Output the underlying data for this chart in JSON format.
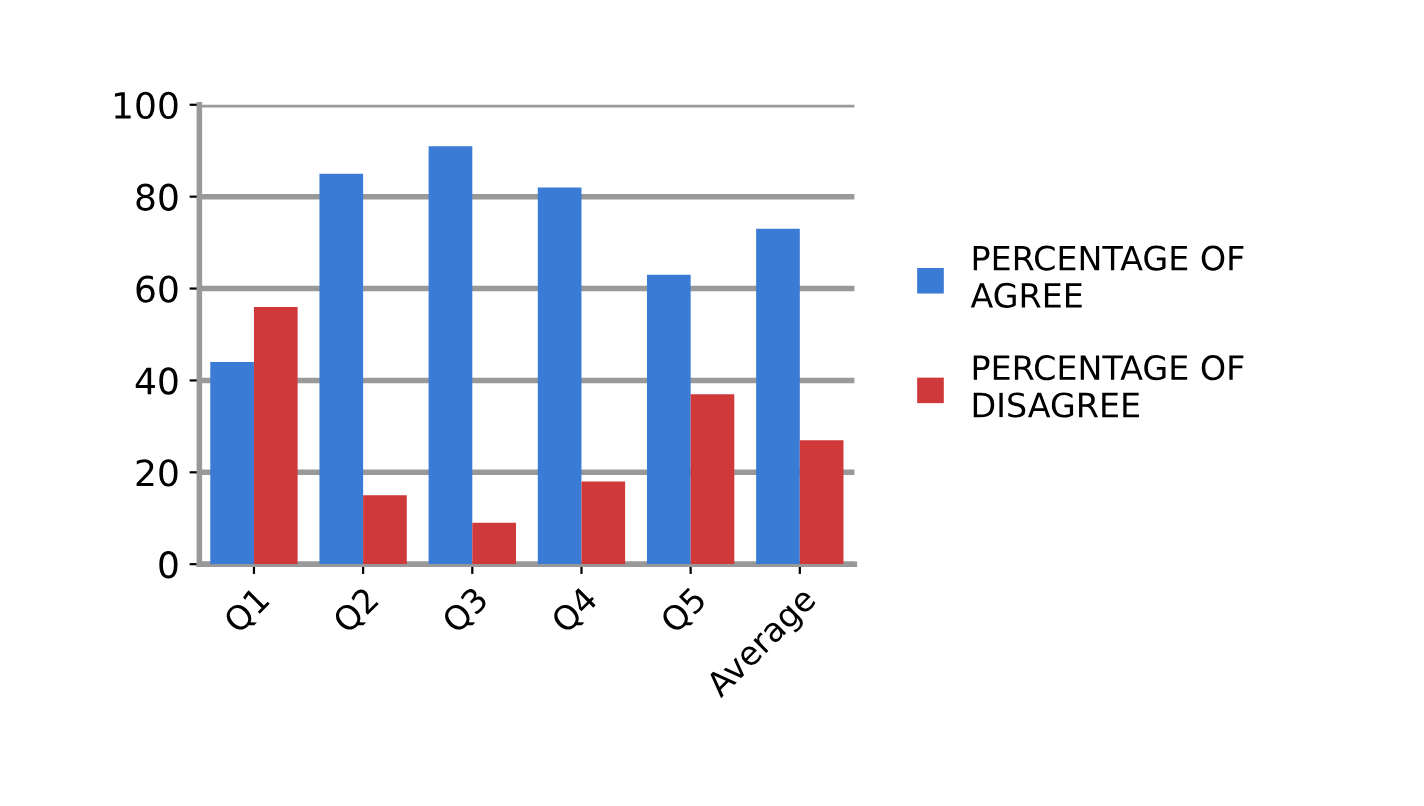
{
  "chart_data": {
    "type": "bar",
    "categories": [
      "Q1",
      "Q2",
      "Q3",
      "Q4",
      "Q5",
      "Average"
    ],
    "series": [
      {
        "name": "PERCENTAGE OF AGREE",
        "color": "#3a7bd5",
        "values": [
          44,
          85,
          91,
          82,
          63,
          73
        ]
      },
      {
        "name": "PERCENTAGE OF DISAGREE",
        "color": "#d0393a",
        "values": [
          56,
          15,
          9,
          18,
          37,
          27
        ]
      }
    ],
    "ylim": [
      0,
      100
    ],
    "yticks": [
      0,
      20,
      40,
      60,
      80,
      100
    ],
    "grid": "y",
    "legend": "right"
  }
}
